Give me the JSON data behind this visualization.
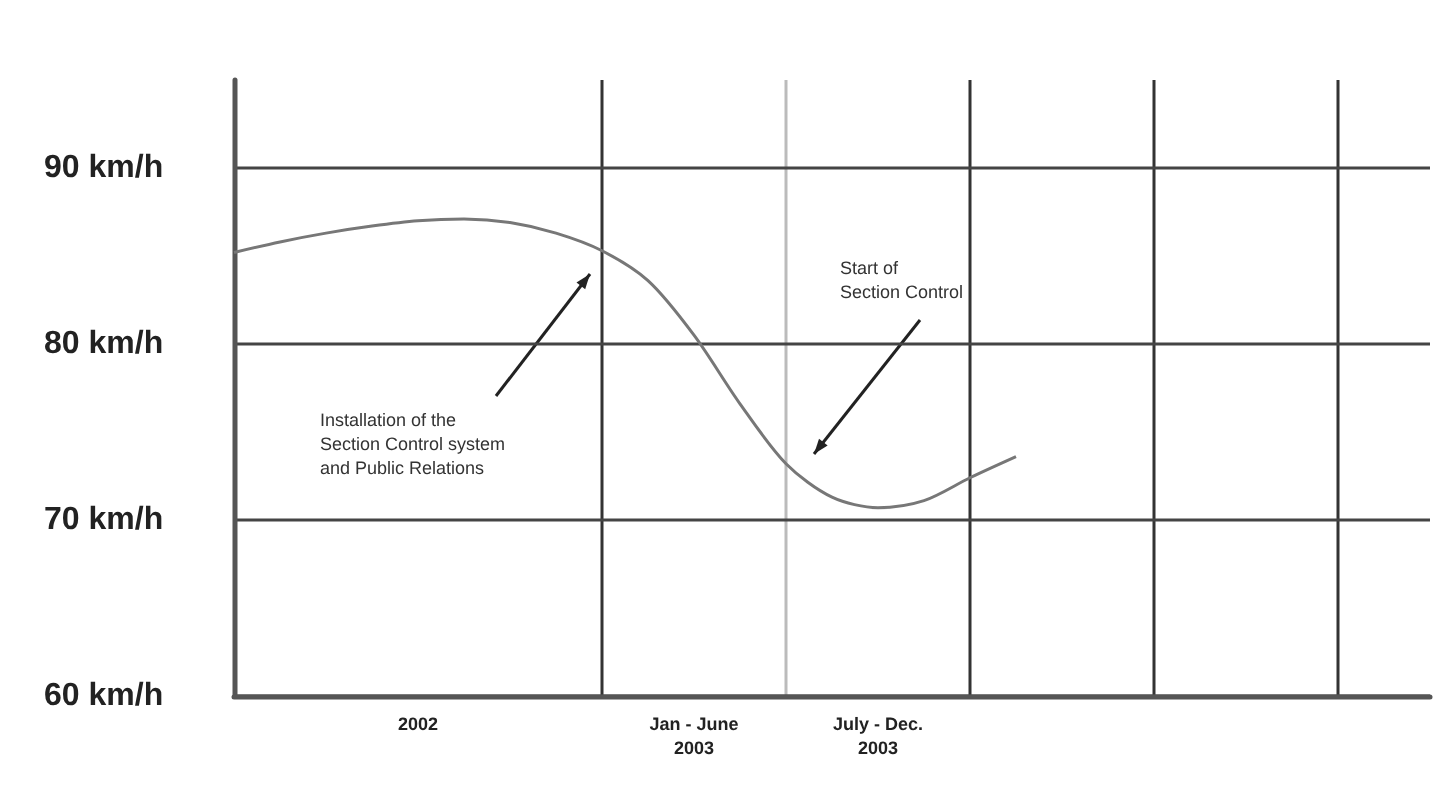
{
  "chart_data": {
    "type": "line",
    "categories": [
      null,
      null,
      null,
      null,
      "2002",
      null,
      null,
      null,
      null,
      null,
      "Jan - June\n2003",
      null,
      null,
      null,
      "July - Dec.\n2003",
      null,
      null,
      null,
      null,
      null,
      null,
      null,
      null,
      null,
      null,
      null,
      null
    ],
    "series": [
      {
        "color": "#777777",
        "values": [
          85.2,
          85.8,
          86.3,
          86.7,
          87.0,
          87.1,
          86.9,
          86.3,
          85.3,
          83.6,
          80.5,
          76.6,
          73.2,
          71.3,
          70.7,
          71.1,
          72.4,
          73.6,
          null,
          null,
          null,
          null,
          null,
          null,
          null,
          null,
          null
        ]
      }
    ],
    "ylim": [
      60,
      95
    ],
    "yticks": [
      {
        "value": 60,
        "label": "60 km/h"
      },
      {
        "value": 70,
        "label": "70 km/h"
      },
      {
        "value": 80,
        "label": "80 km/h"
      },
      {
        "value": 90,
        "label": "90 km/h"
      }
    ],
    "grid": true,
    "annotations": [
      "Installation of the\nSection Control system\nand Public Relations",
      "Start of\nSection Control"
    ],
    "marker": "none",
    "line_style": "solid"
  }
}
